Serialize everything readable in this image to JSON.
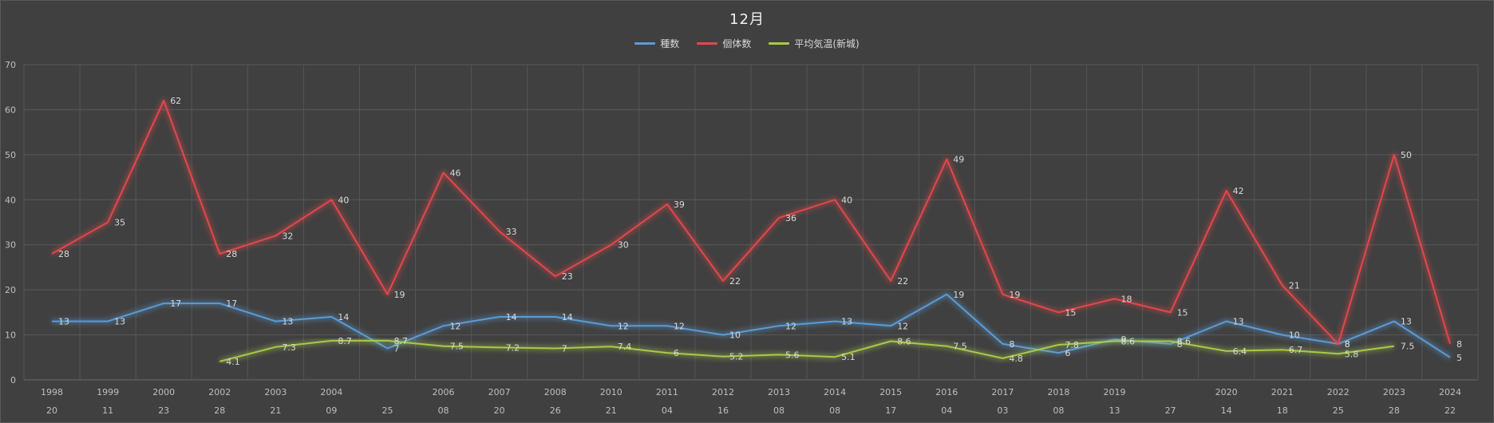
{
  "chart_data": {
    "type": "line",
    "title": "12月",
    "xlabel": "",
    "ylabel": "",
    "ylim": [
      0,
      70
    ],
    "yticks": [
      0,
      10,
      20,
      30,
      40,
      50,
      60,
      70
    ],
    "grid": true,
    "legend_position": "top",
    "categories": [
      {
        "year": "1998",
        "day": "20"
      },
      {
        "year": "1999",
        "day": "11"
      },
      {
        "year": "2000",
        "day": "23"
      },
      {
        "year": "2002",
        "day": "28"
      },
      {
        "year": "2003",
        "day": "21"
      },
      {
        "year": "2004",
        "day": "09"
      },
      {
        "year": "",
        "day": "25"
      },
      {
        "year": "2006",
        "day": "08"
      },
      {
        "year": "2007",
        "day": "20"
      },
      {
        "year": "2008",
        "day": "26"
      },
      {
        "year": "2010",
        "day": "21"
      },
      {
        "year": "2011",
        "day": "04"
      },
      {
        "year": "2012",
        "day": "16"
      },
      {
        "year": "2013",
        "day": "08"
      },
      {
        "year": "2014",
        "day": "08"
      },
      {
        "year": "2015",
        "day": "17"
      },
      {
        "year": "2016",
        "day": "04"
      },
      {
        "year": "2017",
        "day": "03"
      },
      {
        "year": "2018",
        "day": "08"
      },
      {
        "year": "2019",
        "day": "13"
      },
      {
        "year": "",
        "day": "27"
      },
      {
        "year": "2020",
        "day": "14"
      },
      {
        "year": "2021",
        "day": "18"
      },
      {
        "year": "2022",
        "day": "25"
      },
      {
        "year": "2023",
        "day": "28"
      },
      {
        "year": "2024",
        "day": "22"
      }
    ],
    "series": [
      {
        "name": "種数",
        "color": "#5b9bd5",
        "values": [
          13,
          13,
          17,
          17,
          13,
          14,
          7,
          12,
          14,
          14,
          12,
          12,
          10,
          12,
          13,
          12,
          19,
          8,
          6,
          9,
          8,
          13,
          10,
          8,
          13,
          5
        ]
      },
      {
        "name": "個体数",
        "color": "#e0484b",
        "values": [
          28,
          35,
          62,
          28,
          32,
          40,
          19,
          46,
          33,
          23,
          30,
          39,
          22,
          36,
          40,
          22,
          49,
          19,
          15,
          18,
          15,
          42,
          21,
          8,
          50,
          8
        ]
      },
      {
        "name": "平均気温(新城)",
        "color": "#a9c94b",
        "values": [
          null,
          null,
          null,
          4.1,
          7.3,
          8.7,
          8.7,
          7.5,
          7.2,
          7,
          7.4,
          6,
          5.2,
          5.6,
          5.1,
          8.6,
          7.5,
          4.8,
          7.8,
          8.6,
          8.6,
          6.4,
          6.7,
          5.8,
          7.5,
          null
        ]
      }
    ]
  }
}
